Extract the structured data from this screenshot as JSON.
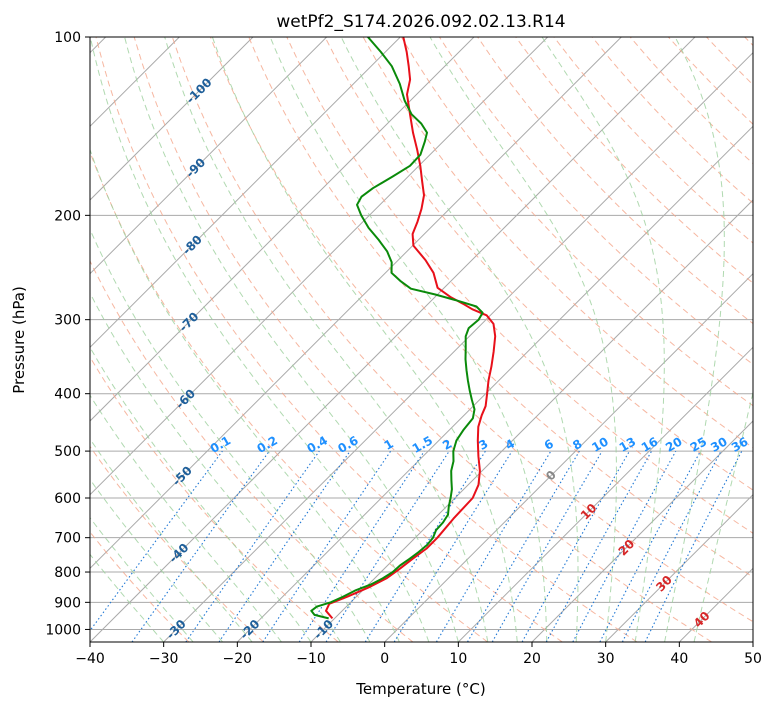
{
  "chart_data": {
    "type": "line",
    "subtype": "skew-t log-p diagram",
    "title": "wetPf2_S174.2026.092.02.13.R14",
    "xlabel": "Temperature (°C)",
    "ylabel": "Pressure (hPa)",
    "xlim": [
      -40,
      50
    ],
    "ylim": [
      1050,
      100
    ],
    "y_scale": "log",
    "grid": true,
    "x_ticks": [
      "−40",
      "−30",
      "−20",
      "−10",
      "0",
      "10",
      "20",
      "30",
      "40",
      "50"
    ],
    "y_ticks": [
      "100",
      "200",
      "300",
      "400",
      "500",
      "600",
      "700",
      "800",
      "900",
      "1000"
    ],
    "series": [
      {
        "color": "#e8101a",
        "points": [
          [
            958,
            -10.3
          ],
          [
            930,
            -12.2
          ],
          [
            905,
            -12.7
          ],
          [
            880,
            -11.2
          ],
          [
            850,
            -9.6
          ],
          [
            820,
            -8.4
          ],
          [
            790,
            -7.9
          ],
          [
            760,
            -7.5
          ],
          [
            730,
            -7.0
          ],
          [
            700,
            -7.0
          ],
          [
            650,
            -7.4
          ],
          [
            600,
            -7.6
          ],
          [
            570,
            -8.6
          ],
          [
            540,
            -10.3
          ],
          [
            510,
            -12.5
          ],
          [
            480,
            -14.7
          ],
          [
            455,
            -16.5
          ],
          [
            435,
            -17.6
          ],
          [
            420,
            -18.3
          ],
          [
            400,
            -19.8
          ],
          [
            380,
            -21.4
          ],
          [
            360,
            -22.9
          ],
          [
            340,
            -24.6
          ],
          [
            320,
            -26.5
          ],
          [
            305,
            -28.4
          ],
          [
            295,
            -30.5
          ],
          [
            288,
            -33.3
          ],
          [
            282,
            -35.3
          ],
          [
            275,
            -37.8
          ],
          [
            265,
            -40.9
          ],
          [
            250,
            -43.5
          ],
          [
            238,
            -46.3
          ],
          [
            225,
            -49.9
          ],
          [
            215,
            -51.6
          ],
          [
            205,
            -52.6
          ],
          [
            195,
            -53.8
          ],
          [
            185,
            -55.3
          ],
          [
            175,
            -57.5
          ],
          [
            165,
            -59.8
          ],
          [
            155,
            -62.4
          ],
          [
            145,
            -65.3
          ],
          [
            135,
            -68.2
          ],
          [
            125,
            -71.3
          ],
          [
            118,
            -72.9
          ],
          [
            112,
            -74.9
          ],
          [
            106,
            -77.1
          ],
          [
            100,
            -79.6
          ]
        ]
      },
      {
        "color": "#0a8a0a",
        "points": [
          [
            958,
            -10.8
          ],
          [
            945,
            -13.2
          ],
          [
            930,
            -14.2
          ],
          [
            915,
            -14.0
          ],
          [
            900,
            -12.7
          ],
          [
            880,
            -11.8
          ],
          [
            860,
            -11.0
          ],
          [
            840,
            -9.7
          ],
          [
            820,
            -8.9
          ],
          [
            800,
            -8.4
          ],
          [
            780,
            -8.3
          ],
          [
            760,
            -7.9
          ],
          [
            740,
            -7.6
          ],
          [
            720,
            -7.4
          ],
          [
            700,
            -7.6
          ],
          [
            680,
            -8.2
          ],
          [
            660,
            -8.3
          ],
          [
            640,
            -8.7
          ],
          [
            620,
            -9.7
          ],
          [
            600,
            -10.6
          ],
          [
            580,
            -11.6
          ],
          [
            560,
            -12.9
          ],
          [
            540,
            -14.2
          ],
          [
            520,
            -15.2
          ],
          [
            500,
            -16.6
          ],
          [
            480,
            -17.6
          ],
          [
            460,
            -18.1
          ],
          [
            440,
            -18.4
          ],
          [
            425,
            -19.4
          ],
          [
            410,
            -21.0
          ],
          [
            395,
            -22.6
          ],
          [
            380,
            -24.2
          ],
          [
            365,
            -25.8
          ],
          [
            350,
            -27.4
          ],
          [
            335,
            -28.9
          ],
          [
            320,
            -30.5
          ],
          [
            310,
            -31.2
          ],
          [
            300,
            -31.0
          ],
          [
            292,
            -31.4
          ],
          [
            285,
            -33.1
          ],
          [
            278,
            -36.8
          ],
          [
            272,
            -40.3
          ],
          [
            266,
            -44.4
          ],
          [
            258,
            -46.9
          ],
          [
            250,
            -49.2
          ],
          [
            240,
            -50.6
          ],
          [
            230,
            -52.7
          ],
          [
            220,
            -55.4
          ],
          [
            210,
            -58.4
          ],
          [
            200,
            -61.1
          ],
          [
            192,
            -63.1
          ],
          [
            186,
            -63.6
          ],
          [
            180,
            -63.2
          ],
          [
            172,
            -62.1
          ],
          [
            165,
            -61.2
          ],
          [
            158,
            -61.3
          ],
          [
            150,
            -62.5
          ],
          [
            145,
            -63.4
          ],
          [
            140,
            -65.4
          ],
          [
            135,
            -68.0
          ],
          [
            128,
            -70.8
          ],
          [
            120,
            -73.7
          ],
          [
            112,
            -77.2
          ],
          [
            106,
            -80.6
          ],
          [
            100,
            -84.4
          ]
        ]
      }
    ],
    "annotations": {
      "dry_adiabat_labels": [
        "-100",
        "-90",
        "-80",
        "-70",
        "-60",
        "-50",
        "-40",
        "-30",
        "-20",
        "-10",
        "0",
        "10",
        "20",
        "30",
        "40"
      ],
      "mixing_ratio_labels": [
        "0.1",
        "0.2",
        "0.4",
        "0.6",
        "1",
        "1.5",
        "2",
        "3",
        "4",
        "6",
        "8",
        "10",
        "13",
        "16",
        "20",
        "25",
        "30",
        "36"
      ]
    },
    "colors": {
      "isotherm": "#aaaaaa",
      "isobar": "#aaaaaa",
      "dry_adiabat": "#f4a58a",
      "moist_adiabat": "#9ccf9c",
      "mixing_ratio": "#1f77d4",
      "dry_adiabat_label_cold": "#1f5f9a",
      "dry_adiabat_label_warm": "#d62728",
      "mixing_ratio_label": "#1e90ff",
      "temperature": "#e8101a",
      "dewpoint": "#0a8a0a"
    }
  }
}
